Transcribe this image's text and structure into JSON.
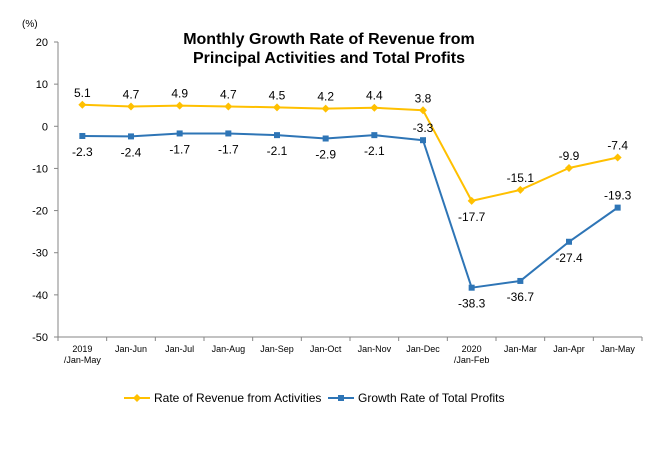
{
  "chart_data": {
    "type": "line",
    "title": [
      "Monthly Growth Rate of Revenue from",
      "Principal Activities  and Total Profits"
    ],
    "unit": "(%)",
    "categories": [
      [
        "2019",
        "/Jan-May"
      ],
      [
        "Jan-Jun"
      ],
      [
        "Jan-Jul"
      ],
      [
        "Jan-Aug"
      ],
      [
        "Jan-Sep"
      ],
      [
        "Jan-Oct"
      ],
      [
        "Jan-Nov"
      ],
      [
        "Jan-Dec"
      ],
      [
        "2020",
        "/Jan-Feb"
      ],
      [
        "Jan-Mar"
      ],
      [
        "Jan-Apr"
      ],
      [
        "Jan-May"
      ]
    ],
    "ylim": [
      -50,
      20
    ],
    "yticks": [
      20,
      10,
      0,
      -10,
      -20,
      -30,
      -40,
      -50
    ],
    "grid": false,
    "legend_position": "bottom",
    "series": [
      {
        "name": "Rate of Revenue from Activities",
        "color": "#FFC000",
        "marker": "diamond",
        "values": [
          5.1,
          4.7,
          4.9,
          4.7,
          4.5,
          4.2,
          4.4,
          3.8,
          -17.7,
          -15.1,
          -9.9,
          -7.4
        ],
        "labels": [
          "5.1",
          "4.7",
          "4.9",
          "4.7",
          "4.5",
          "4.2",
          "4.4",
          "3.8",
          "-17.7",
          "-15.1",
          "-9.9",
          "-7.4"
        ]
      },
      {
        "name": "Growth Rate of Total Profits",
        "color": "#2E75B6",
        "marker": "square",
        "values": [
          -2.3,
          -2.4,
          -1.7,
          -1.7,
          -2.1,
          -2.9,
          -2.1,
          -3.3,
          -38.3,
          -36.7,
          -27.4,
          -19.3
        ],
        "labels": [
          "-2.3",
          "-2.4",
          "-1.7",
          "-1.7",
          "-2.1",
          "-2.9",
          "-2.1",
          "-3.3",
          "-38.3",
          "-36.7",
          "-27.4",
          "-19.3"
        ]
      }
    ]
  }
}
